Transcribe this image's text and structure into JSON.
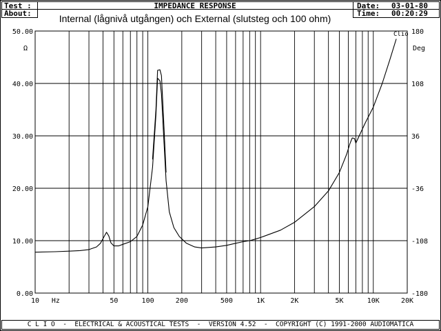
{
  "header": {
    "test_label": "Test :",
    "test_value": "",
    "about_label": "About:",
    "title": "IMPEDANCE RESPONSE",
    "date_label": "Date:",
    "date_value": "03-01-80",
    "time_label": "Time:",
    "time_value": "00:20:29"
  },
  "footer": {
    "text": "C L I O  -  ELECTRICAL & ACOUSTICAL TESTS  -  VERSION 4.52  -  COPYRIGHT (C) 1991-2000 AUDIOMATICA"
  },
  "chart_data": {
    "type": "line",
    "title": "Internal (lågnivå utgången) och External (slutsteg och 100 ohm)",
    "brand": "Clio",
    "xscale": "log",
    "xlim": [
      10,
      20000
    ],
    "xlabel": "Hz",
    "x_ticks": [
      {
        "v": 10,
        "label": "10"
      },
      {
        "v": 50,
        "label": "50"
      },
      {
        "v": 100,
        "label": "100"
      },
      {
        "v": 200,
        "label": "200"
      },
      {
        "v": 500,
        "label": "500"
      },
      {
        "v": 1000,
        "label": "1K"
      },
      {
        "v": 2000,
        "label": "2K"
      },
      {
        "v": 5000,
        "label": "5K"
      },
      {
        "v": 10000,
        "label": "10K"
      },
      {
        "v": 20000,
        "label": "20K"
      }
    ],
    "ylim": [
      0,
      50
    ],
    "ylabel": "Ω",
    "y_ticks": [
      "0.00",
      "10.00",
      "20.00",
      "30.00",
      "40.00",
      "50.00"
    ],
    "y2lim": [
      -180,
      180
    ],
    "y2label": "Deg",
    "y2_ticks": [
      "-180",
      "-108",
      "-36",
      "36",
      "108",
      "180"
    ],
    "grid": true,
    "series": [
      {
        "points": [
          [
            10,
            7.8
          ],
          [
            15,
            7.9
          ],
          [
            20,
            8.0
          ],
          [
            25,
            8.1
          ],
          [
            30,
            8.3
          ],
          [
            35,
            8.8
          ],
          [
            38,
            9.5
          ],
          [
            41,
            10.8
          ],
          [
            43,
            11.6
          ],
          [
            45,
            10.9
          ],
          [
            47,
            9.6
          ],
          [
            50,
            9.0
          ],
          [
            55,
            9.0
          ],
          [
            60,
            9.3
          ],
          [
            70,
            9.8
          ],
          [
            80,
            10.8
          ],
          [
            90,
            13.0
          ],
          [
            100,
            16.5
          ],
          [
            110,
            24.0
          ],
          [
            118,
            34.0
          ],
          [
            122,
            41.0
          ],
          [
            128,
            40.5
          ],
          [
            132,
            38.0
          ],
          [
            138,
            30.0
          ],
          [
            145,
            21.5
          ],
          [
            155,
            15.5
          ],
          [
            170,
            12.5
          ],
          [
            190,
            10.8
          ],
          [
            220,
            9.5
          ],
          [
            260,
            8.8
          ],
          [
            300,
            8.6
          ],
          [
            400,
            8.8
          ],
          [
            500,
            9.1
          ],
          [
            600,
            9.5
          ],
          [
            700,
            9.8
          ],
          [
            800,
            10.0
          ],
          [
            900,
            10.3
          ],
          [
            1000,
            10.6
          ],
          [
            1500,
            12.0
          ],
          [
            2000,
            13.5
          ],
          [
            3000,
            16.5
          ],
          [
            4000,
            19.5
          ],
          [
            5000,
            23.0
          ],
          [
            5800,
            26.5
          ],
          [
            6200,
            28.5
          ],
          [
            6500,
            29.6
          ],
          [
            6800,
            29.5
          ],
          [
            7000,
            28.6
          ],
          [
            7500,
            30.0
          ],
          [
            8500,
            32.5
          ],
          [
            10000,
            35.5
          ],
          [
            12000,
            40.0
          ],
          [
            14000,
            44.5
          ],
          [
            16000,
            48.5
          ]
        ]
      },
      {
        "points": [
          [
            110,
            25.5
          ],
          [
            118,
            35.0
          ],
          [
            122,
            42.5
          ],
          [
            128,
            42.6
          ],
          [
            132,
            41.5
          ],
          [
            138,
            33.0
          ],
          [
            145,
            23.0
          ]
        ]
      }
    ]
  }
}
